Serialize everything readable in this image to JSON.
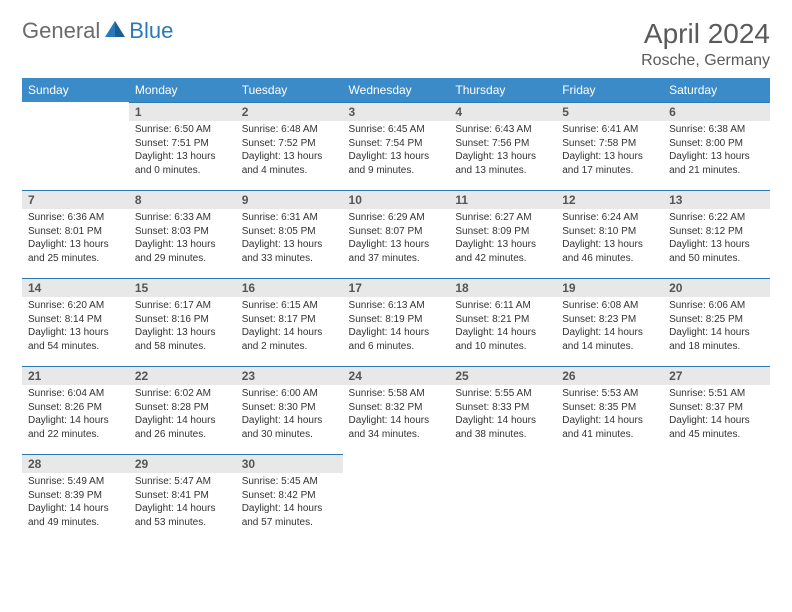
{
  "brand": {
    "general": "General",
    "blue": "Blue"
  },
  "title": "April 2024",
  "location": "Rosche, Germany",
  "colors": {
    "header_bg": "#3b8bc9",
    "header_text": "#ffffff",
    "accent_border": "#2a7ab8",
    "daynum_bg": "#e8e8e8",
    "body_text": "#333333",
    "title_text": "#5a5a5a"
  },
  "weekdays": [
    "Sunday",
    "Monday",
    "Tuesday",
    "Wednesday",
    "Thursday",
    "Friday",
    "Saturday"
  ],
  "weeks": [
    [
      null,
      {
        "n": "1",
        "sr": "6:50 AM",
        "ss": "7:51 PM",
        "dl": "13 hours and 0 minutes."
      },
      {
        "n": "2",
        "sr": "6:48 AM",
        "ss": "7:52 PM",
        "dl": "13 hours and 4 minutes."
      },
      {
        "n": "3",
        "sr": "6:45 AM",
        "ss": "7:54 PM",
        "dl": "13 hours and 9 minutes."
      },
      {
        "n": "4",
        "sr": "6:43 AM",
        "ss": "7:56 PM",
        "dl": "13 hours and 13 minutes."
      },
      {
        "n": "5",
        "sr": "6:41 AM",
        "ss": "7:58 PM",
        "dl": "13 hours and 17 minutes."
      },
      {
        "n": "6",
        "sr": "6:38 AM",
        "ss": "8:00 PM",
        "dl": "13 hours and 21 minutes."
      }
    ],
    [
      {
        "n": "7",
        "sr": "6:36 AM",
        "ss": "8:01 PM",
        "dl": "13 hours and 25 minutes."
      },
      {
        "n": "8",
        "sr": "6:33 AM",
        "ss": "8:03 PM",
        "dl": "13 hours and 29 minutes."
      },
      {
        "n": "9",
        "sr": "6:31 AM",
        "ss": "8:05 PM",
        "dl": "13 hours and 33 minutes."
      },
      {
        "n": "10",
        "sr": "6:29 AM",
        "ss": "8:07 PM",
        "dl": "13 hours and 37 minutes."
      },
      {
        "n": "11",
        "sr": "6:27 AM",
        "ss": "8:09 PM",
        "dl": "13 hours and 42 minutes."
      },
      {
        "n": "12",
        "sr": "6:24 AM",
        "ss": "8:10 PM",
        "dl": "13 hours and 46 minutes."
      },
      {
        "n": "13",
        "sr": "6:22 AM",
        "ss": "8:12 PM",
        "dl": "13 hours and 50 minutes."
      }
    ],
    [
      {
        "n": "14",
        "sr": "6:20 AM",
        "ss": "8:14 PM",
        "dl": "13 hours and 54 minutes."
      },
      {
        "n": "15",
        "sr": "6:17 AM",
        "ss": "8:16 PM",
        "dl": "13 hours and 58 minutes."
      },
      {
        "n": "16",
        "sr": "6:15 AM",
        "ss": "8:17 PM",
        "dl": "14 hours and 2 minutes."
      },
      {
        "n": "17",
        "sr": "6:13 AM",
        "ss": "8:19 PM",
        "dl": "14 hours and 6 minutes."
      },
      {
        "n": "18",
        "sr": "6:11 AM",
        "ss": "8:21 PM",
        "dl": "14 hours and 10 minutes."
      },
      {
        "n": "19",
        "sr": "6:08 AM",
        "ss": "8:23 PM",
        "dl": "14 hours and 14 minutes."
      },
      {
        "n": "20",
        "sr": "6:06 AM",
        "ss": "8:25 PM",
        "dl": "14 hours and 18 minutes."
      }
    ],
    [
      {
        "n": "21",
        "sr": "6:04 AM",
        "ss": "8:26 PM",
        "dl": "14 hours and 22 minutes."
      },
      {
        "n": "22",
        "sr": "6:02 AM",
        "ss": "8:28 PM",
        "dl": "14 hours and 26 minutes."
      },
      {
        "n": "23",
        "sr": "6:00 AM",
        "ss": "8:30 PM",
        "dl": "14 hours and 30 minutes."
      },
      {
        "n": "24",
        "sr": "5:58 AM",
        "ss": "8:32 PM",
        "dl": "14 hours and 34 minutes."
      },
      {
        "n": "25",
        "sr": "5:55 AM",
        "ss": "8:33 PM",
        "dl": "14 hours and 38 minutes."
      },
      {
        "n": "26",
        "sr": "5:53 AM",
        "ss": "8:35 PM",
        "dl": "14 hours and 41 minutes."
      },
      {
        "n": "27",
        "sr": "5:51 AM",
        "ss": "8:37 PM",
        "dl": "14 hours and 45 minutes."
      }
    ],
    [
      {
        "n": "28",
        "sr": "5:49 AM",
        "ss": "8:39 PM",
        "dl": "14 hours and 49 minutes."
      },
      {
        "n": "29",
        "sr": "5:47 AM",
        "ss": "8:41 PM",
        "dl": "14 hours and 53 minutes."
      },
      {
        "n": "30",
        "sr": "5:45 AM",
        "ss": "8:42 PM",
        "dl": "14 hours and 57 minutes."
      },
      null,
      null,
      null,
      null
    ]
  ],
  "labels": {
    "sunrise": "Sunrise:",
    "sunset": "Sunset:",
    "daylight": "Daylight:"
  }
}
